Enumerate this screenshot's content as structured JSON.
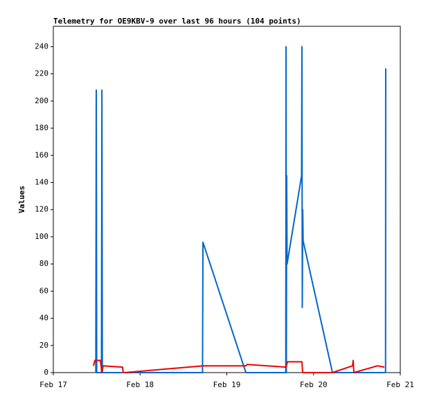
{
  "chart_data": {
    "type": "line",
    "title": "Telemetry for OE9KBV-9 over last 96 hours (104 points)",
    "y_label": "Values",
    "xlim": [
      0,
      4
    ],
    "xticks": [
      {
        "value": 0,
        "label": "Feb 17"
      },
      {
        "value": 1,
        "label": "Feb 18"
      },
      {
        "value": 2,
        "label": "Feb 19"
      },
      {
        "value": 3,
        "label": "Feb 20"
      },
      {
        "value": 4,
        "label": "Feb 21"
      }
    ],
    "ylim": [
      0,
      255
    ],
    "yticks": [
      0,
      20,
      40,
      60,
      80,
      100,
      120,
      140,
      160,
      180,
      200,
      220,
      240
    ],
    "series": [
      {
        "color": "#0066cc",
        "x": [
          0.49,
          0.495,
          0.5,
          0.555,
          0.56,
          0.565,
          1.72,
          1.725,
          2.22,
          2.68,
          2.683,
          2.686,
          2.69,
          2.695,
          2.862,
          2.866,
          2.87,
          2.875,
          2.88,
          3.218,
          3.83,
          3.832
        ],
        "values": [
          0,
          208,
          0,
          0,
          208,
          0,
          0,
          96,
          0,
          0,
          240,
          0,
          145,
          80,
          145,
          240,
          48,
          120,
          97,
          0,
          0,
          224
        ]
      },
      {
        "color": "#ee0000",
        "x": [
          0.463,
          0.479,
          0.543,
          0.559,
          0.575,
          0.798,
          0.806,
          0.822,
          1.725,
          2.22,
          2.236,
          2.683,
          2.699,
          2.866,
          2.874,
          3.218,
          3.449,
          3.457,
          3.465,
          3.737,
          3.816
        ],
        "values": [
          5,
          9,
          9,
          0,
          5,
          4,
          0,
          0,
          5,
          5,
          6,
          4,
          8,
          8,
          0,
          0,
          5,
          9,
          0,
          5,
          4
        ]
      }
    ]
  }
}
